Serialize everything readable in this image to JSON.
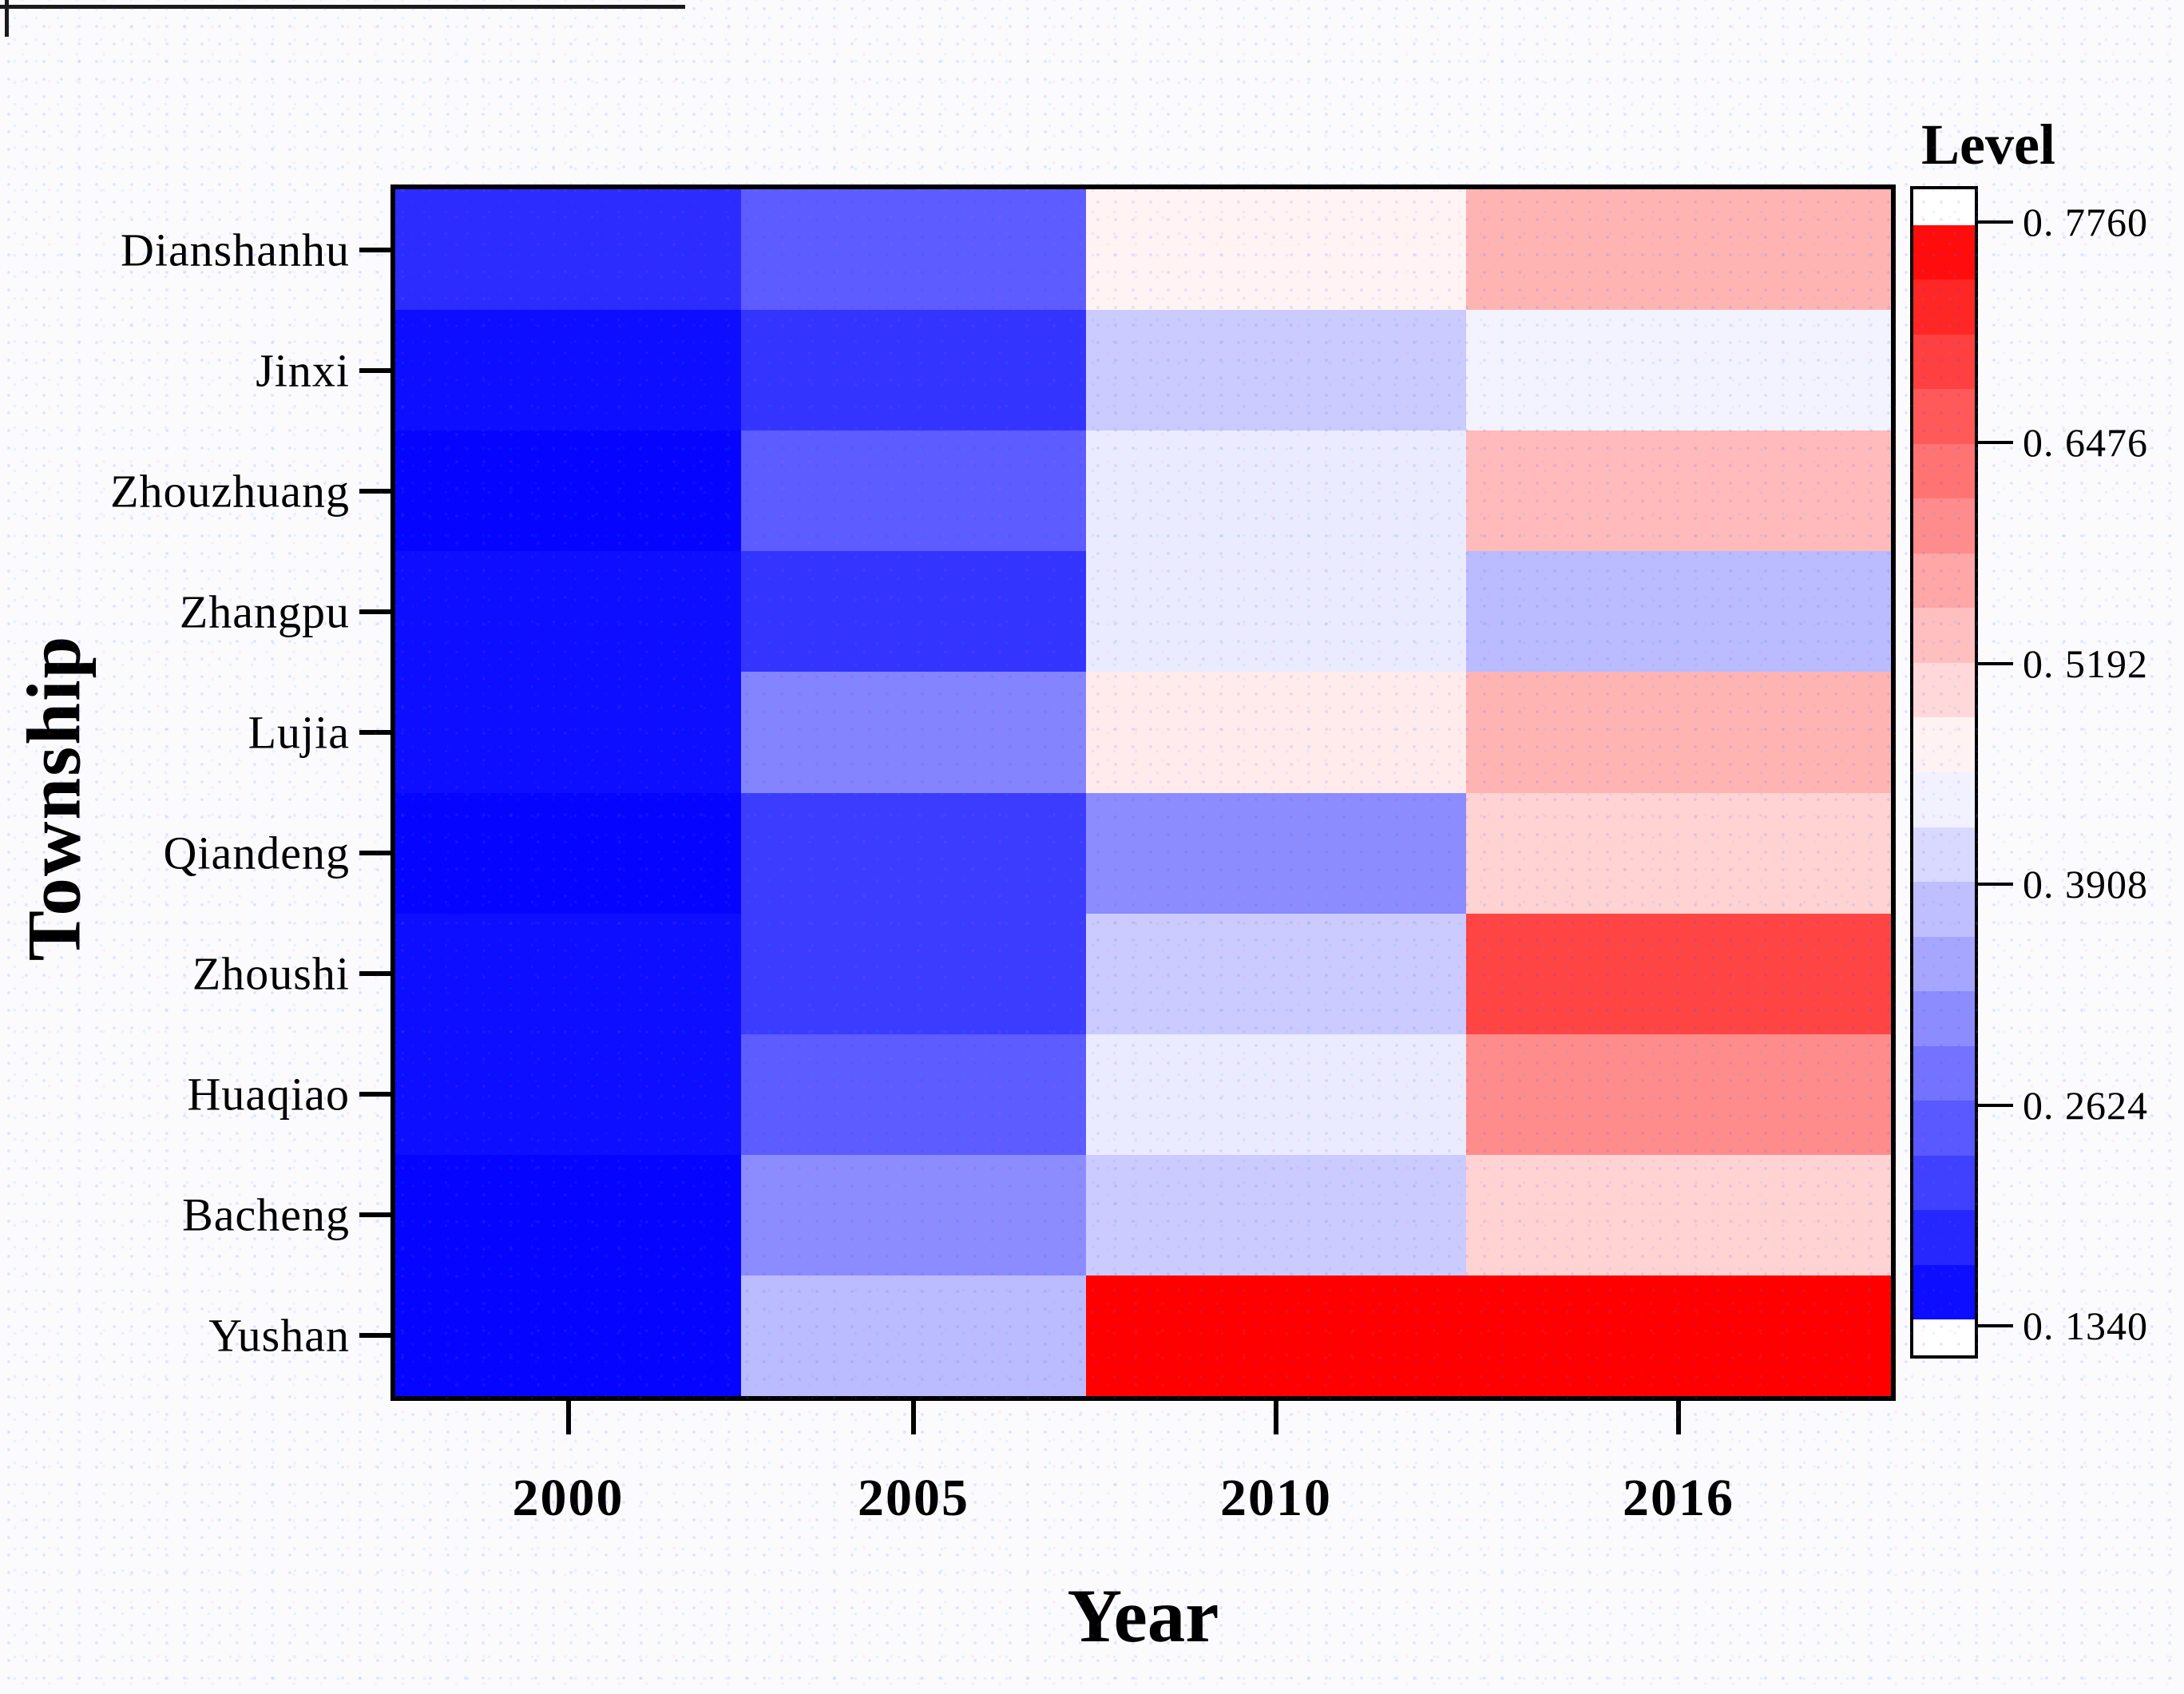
{
  "chart_data": {
    "type": "heatmap",
    "xlabel": "Year",
    "ylabel": "Township",
    "legend_title": "Level",
    "x_categories": [
      "2000",
      "2005",
      "2010",
      "2016"
    ],
    "y_categories": [
      "Dianshanhu",
      "Jinxi",
      "Zhouzhuang",
      "Zhangpu",
      "Lujia",
      "Qiandeng",
      "Zhoushi",
      "Huaqiao",
      "Bacheng",
      "Yushan"
    ],
    "values": [
      [
        0.19,
        0.25,
        0.47,
        0.55
      ],
      [
        0.15,
        0.2,
        0.39,
        0.44
      ],
      [
        0.14,
        0.25,
        0.43,
        0.54
      ],
      [
        0.15,
        0.2,
        0.43,
        0.37
      ],
      [
        0.15,
        0.3,
        0.48,
        0.55
      ],
      [
        0.14,
        0.21,
        0.31,
        0.51
      ],
      [
        0.15,
        0.21,
        0.39,
        0.69
      ],
      [
        0.15,
        0.25,
        0.43,
        0.6
      ],
      [
        0.14,
        0.31,
        0.39,
        0.51
      ],
      [
        0.14,
        0.37,
        0.776,
        0.776
      ]
    ],
    "column_width_ratio": [
      433,
      432,
      476,
      532
    ],
    "colorscale": {
      "min": 0.134,
      "max": 0.776,
      "midpoint": 0.455,
      "min_color": "#0000FF",
      "mid_color": "#FFFFFF",
      "max_color": "#FF0000",
      "steps": 20,
      "tick_labels": [
        "0. 7760",
        "0. 6476",
        "0. 5192",
        "0. 3908",
        "0. 2624",
        "0. 1340"
      ]
    },
    "grid": false,
    "legend_position": "right"
  }
}
